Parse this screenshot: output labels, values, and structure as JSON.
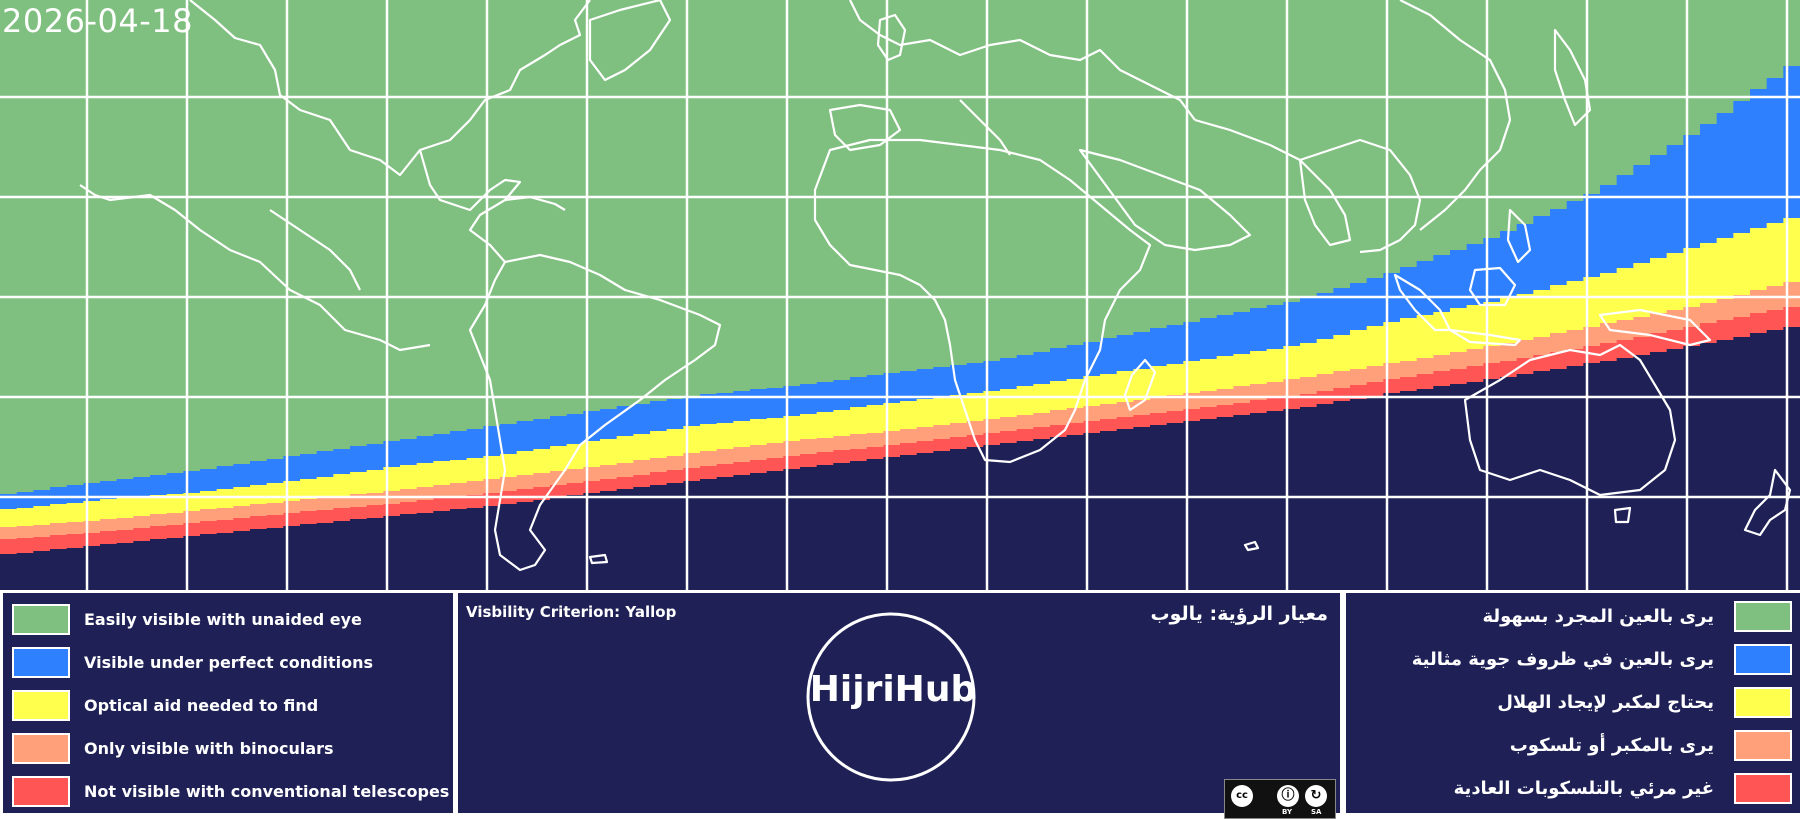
{
  "map": {
    "date": "2026-04-18",
    "zones": {
      "easy": "#7fbf7f",
      "perfect": "#2e80ff",
      "optical": "#ffff4d",
      "binoculars": "#ffa07a",
      "telescope": "#ff5555",
      "not_visible": "#1f2156"
    }
  },
  "legend_en": [
    {
      "label": "Easily visible with unaided eye",
      "color": "#7fbf7f"
    },
    {
      "label": "Visible under perfect conditions",
      "color": "#2e80ff"
    },
    {
      "label": "Optical aid needed to find",
      "color": "#ffff4d"
    },
    {
      "label": "Only visible with binoculars",
      "color": "#ffa07a"
    },
    {
      "label": "Not visible with conventional telescopes",
      "color": "#ff5555"
    }
  ],
  "legend_ar": [
    {
      "label": "يرى بالعين المجرد بسهولة",
      "color": "#7fbf7f"
    },
    {
      "label": "يرى بالعين في ظروف جوية مثالية",
      "color": "#2e80ff"
    },
    {
      "label": "يحتاج لمكبر لإيجاد الهلال",
      "color": "#ffff4d"
    },
    {
      "label": "يرى بالمكبر أو تلسكوب",
      "color": "#ffa07a"
    },
    {
      "label": "غير مرئي بالتلسكوبات العادية",
      "color": "#ff5555"
    }
  ],
  "criterion": {
    "en": "Visbility Criterion: Yallop",
    "ar": "معيار الرؤية: يالوب"
  },
  "brand": {
    "name": "HijriHub"
  },
  "license": {
    "cc": "cc",
    "by": "BY",
    "sa": "SA"
  }
}
